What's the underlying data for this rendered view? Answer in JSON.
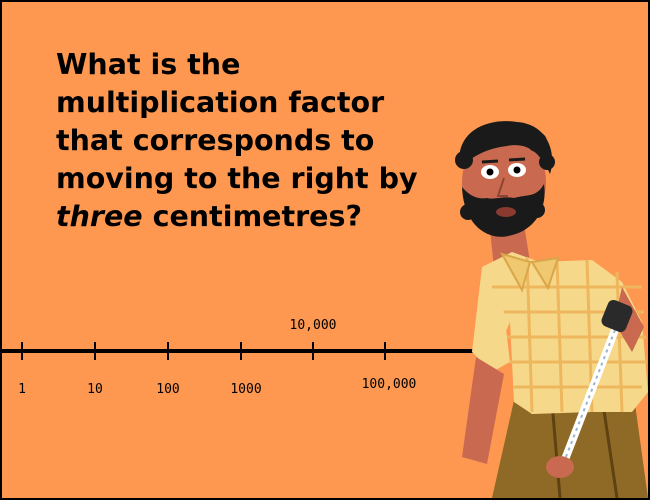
{
  "question": {
    "line1": "What is the",
    "line2": "multiplication factor",
    "line3": "that corresponds to",
    "line4": "moving to the right by",
    "line5_emph": "three",
    "line5_rest": " centimetres?"
  },
  "number_line": {
    "labels": [
      "1",
      "10",
      "100",
      "1000",
      "10,000",
      "100,000"
    ]
  },
  "colors": {
    "background": "#fe9850",
    "text": "#000000"
  },
  "illustration": {
    "icon": "bearded-man-with-tape-measure-icon"
  }
}
